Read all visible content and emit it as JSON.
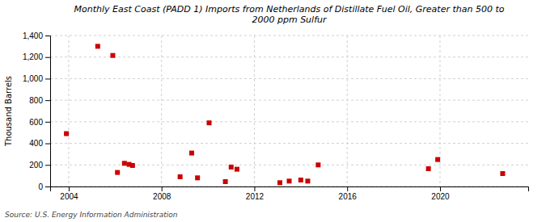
{
  "chart_data": {
    "type": "scatter",
    "title": "Monthly East Coast (PADD 1) Imports from Netherlands of Distillate Fuel Oil, Greater than 500 to\n2000 ppm Sulfur",
    "y_label": "Thousand Barrels",
    "source": "Source: U.S. Energy Information Administration",
    "color": "#cc0000",
    "marker": "square",
    "x": [
      2003.9,
      2005.25,
      2005.9,
      2006.1,
      2006.4,
      2006.6,
      2006.75,
      2008.8,
      2009.3,
      2009.55,
      2010.05,
      2010.75,
      2011.0,
      2011.25,
      2013.1,
      2013.5,
      2014.0,
      2014.3,
      2014.75,
      2019.5,
      2019.9,
      2022.7
    ],
    "values": [
      490,
      1300,
      1215,
      130,
      215,
      205,
      195,
      90,
      310,
      80,
      590,
      45,
      180,
      160,
      35,
      50,
      60,
      50,
      200,
      165,
      250,
      120
    ],
    "xlim": [
      2003.2,
      2023.8
    ],
    "xticks": [
      2004,
      2008,
      2012,
      2016,
      2020
    ],
    "ylim": [
      0,
      1400
    ],
    "yticks": [
      0,
      200,
      400,
      600,
      800,
      {
        "value": 1000,
        "label": "1,000"
      },
      {
        "value": 1200,
        "label": "1,200"
      },
      {
        "value": 1400,
        "label": "1,400"
      }
    ],
    "grid": true
  }
}
